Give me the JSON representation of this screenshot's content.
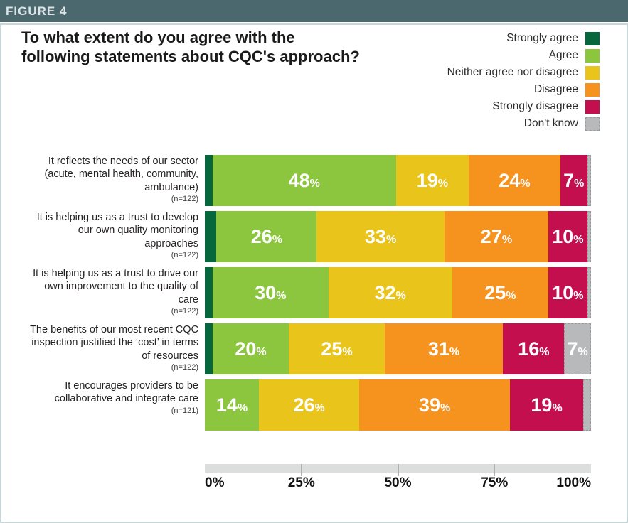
{
  "figure_label": "FIGURE 4",
  "title": {
    "line1": "To what extent do you agree with the",
    "line2": "following statements about CQC's approach?"
  },
  "colors": {
    "header_bg": "#4c686f",
    "frame_border": "#c9d6d8",
    "strongly_agree": "#06673d",
    "agree": "#8cc63e",
    "neither": "#e9c51c",
    "disagree": "#f6921e",
    "strongly_disagree": "#c40f4f",
    "dont_know": "#b8b9bb",
    "axis_track": "#dcdddd"
  },
  "chart_data": {
    "type": "bar",
    "orientation": "horizontal-stacked",
    "title": "To what extent do you agree with the following statements about CQC's approach?",
    "xlim": [
      0,
      100
    ],
    "x_ticks": [
      {
        "label": "0%",
        "pos": 0
      },
      {
        "label": "25%",
        "pos": 25
      },
      {
        "label": "50%",
        "pos": 50
      },
      {
        "label": "75%",
        "pos": 75
      },
      {
        "label": "100%",
        "pos": 100
      }
    ],
    "legend_position": "top-right",
    "value_label_suffix": "%",
    "min_value_for_label": 6,
    "categories": [
      {
        "label": "It reflects the needs of our sector (acute, mental health, community, ambulance)",
        "n": "(n=122)"
      },
      {
        "label": "It is helping us as a trust to develop our own quality monitoring approaches",
        "n": "(n=122)"
      },
      {
        "label": "It is helping us as a trust to drive our own improvement to the quality of care",
        "n": "(n=122)"
      },
      {
        "label": "The benefits of our most recent CQC inspection justified the ‘cost’ in terms of resources",
        "n": "(n=122)"
      },
      {
        "label": "It encourages providers to be collaborative and integrate care",
        "n": "(n=121)"
      }
    ],
    "series": [
      {
        "key": "strongly_agree",
        "name": "Strongly agree",
        "color": "#06673d",
        "dashed": false,
        "values": [
          2,
          3,
          2,
          2,
          0
        ]
      },
      {
        "key": "agree",
        "name": "Agree",
        "color": "#8cc63e",
        "dashed": false,
        "values": [
          48,
          26,
          30,
          20,
          14
        ]
      },
      {
        "key": "neither",
        "name": "Neither agree nor disagree",
        "color": "#e9c51c",
        "dashed": false,
        "values": [
          19,
          33,
          32,
          25,
          26
        ]
      },
      {
        "key": "disagree",
        "name": "Disagree",
        "color": "#f6921e",
        "dashed": false,
        "values": [
          24,
          27,
          25,
          31,
          39
        ]
      },
      {
        "key": "strongly_disagree",
        "name": "Strongly disagree",
        "color": "#c40f4f",
        "dashed": false,
        "values": [
          7,
          10,
          10,
          16,
          19
        ]
      },
      {
        "key": "dont_know",
        "name": "Don't know",
        "color": "#b8b9bb",
        "dashed": true,
        "values": [
          1,
          1,
          1,
          7,
          2
        ]
      }
    ]
  }
}
